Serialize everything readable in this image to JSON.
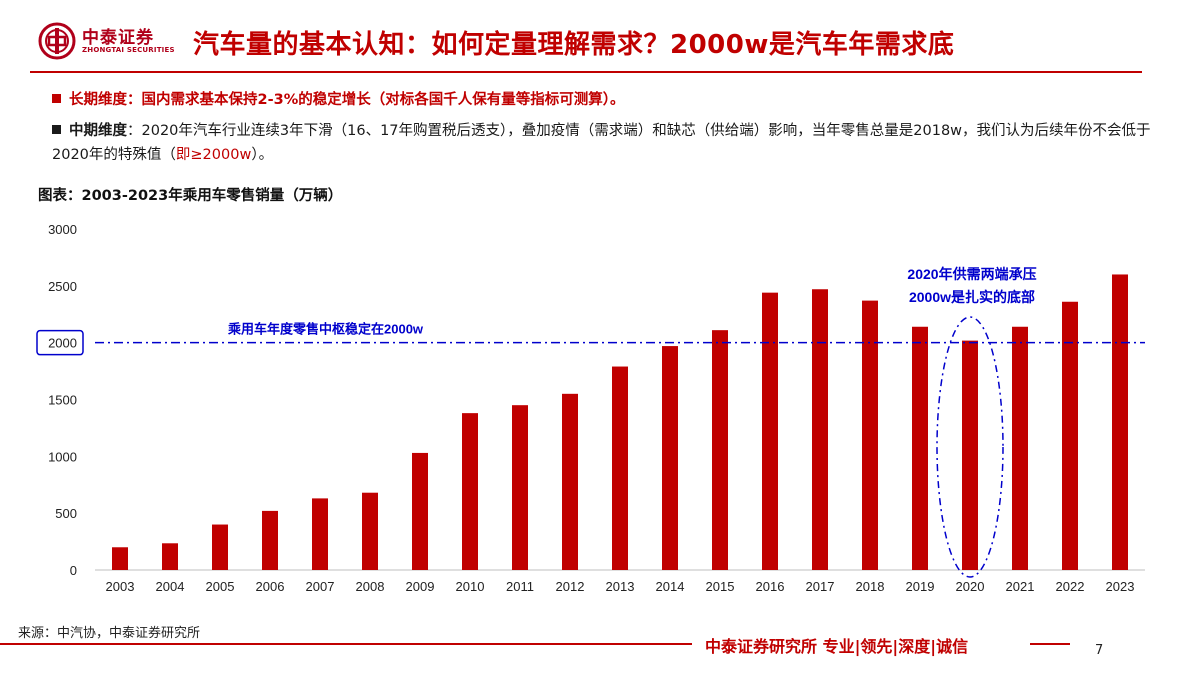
{
  "header": {
    "logo_cn": "中泰证券",
    "logo_en": "ZHONGTAI SECURITIES",
    "title": "汽车量的基本认知：如何定量理解需求？2000w是汽车年需求底"
  },
  "bullets": {
    "b1": "长期维度：国内需求基本保持2-3%的稳定增长（对标各国千人保有量等指标可测算）。",
    "b2_head": "中期维度",
    "b2_body": "：2020年汽车行业连续3年下滑（16、17年购置税后透支），叠加疫情（需求端）和缺芯（供给端）影响，当年零售总量是2018w，我们认为后续年份不会低于2020年的特殊值（",
    "b2_em": "即≥2000w",
    "b2_tail": "）。"
  },
  "chart_title": "图表：2003-2023年乘用车零售销量（万辆）",
  "chart_data": {
    "type": "bar",
    "title": "图表：2003-2023年乘用车零售销量（万辆）",
    "categories": [
      "2003",
      "2004",
      "2005",
      "2006",
      "2007",
      "2008",
      "2009",
      "2010",
      "2011",
      "2012",
      "2013",
      "2014",
      "2015",
      "2016",
      "2017",
      "2018",
      "2019",
      "2020",
      "2021",
      "2022",
      "2023"
    ],
    "series": [
      {
        "values": [
          200,
          235,
          400,
          520,
          630,
          680,
          1030,
          1380,
          1450,
          1550,
          1790,
          1970,
          2110,
          2440,
          2470,
          2370,
          2140,
          2018,
          2140,
          2360,
          2600
        ]
      }
    ],
    "ylim": [
      0,
      3000
    ],
    "yticks": [
      0,
      500,
      1000,
      1500,
      2000,
      2500,
      3000
    ],
    "highlighted_ytick": 2000,
    "reference_line": {
      "value": 2000,
      "label": "乘用车年度零售中枢稳定在2000w",
      "style": "dash-dot",
      "color": "#0000cc"
    },
    "annotation": {
      "category": "2020",
      "lines": [
        "2020年供需两端承压",
        "2000w是扎实的底部"
      ],
      "color": "#0000cc",
      "shape": "dash-dot ellipse"
    },
    "bar_color": "#c00000",
    "grid": false,
    "legend": "none"
  },
  "footer": {
    "source": "来源：中汽协，中泰证券研究所",
    "slogan": "中泰证券研究所 专业|领先|深度|诚信",
    "page": "7"
  },
  "colors": {
    "brand_red": "#c00000",
    "annotation_blue": "#0000cc"
  }
}
